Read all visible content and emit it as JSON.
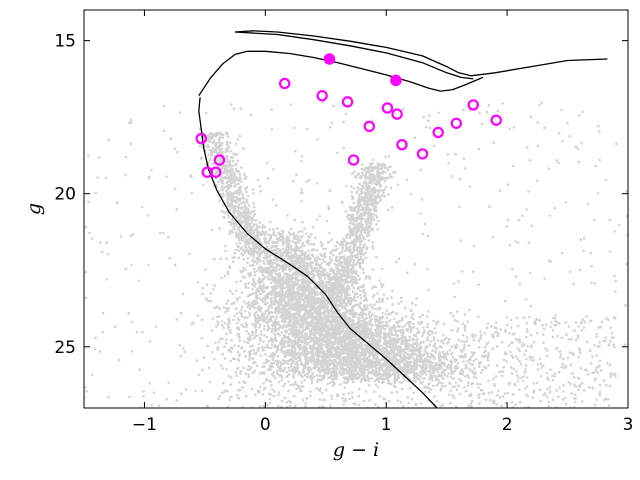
{
  "chart_data": {
    "type": "scatter",
    "title": "",
    "xlabel": "g − i",
    "ylabel": "g",
    "xlim": [
      -1.5,
      3.0
    ],
    "ylim": [
      27.0,
      14.0
    ],
    "y_inverted": true,
    "xticks": [
      -1,
      0,
      1,
      2,
      3
    ],
    "xtick_labels": [
      "−1",
      "0",
      "1",
      "2",
      "3"
    ],
    "yticks": [
      15,
      20,
      25
    ],
    "ytick_labels": [
      "15",
      "20",
      "25"
    ],
    "grid": false,
    "legend": "none",
    "colors": {
      "background_stars": "#d3d3d3",
      "highlight": "#ff00ff",
      "isochrone": "#000000"
    },
    "series": [
      {
        "kind": "scatter-density",
        "style": "small light-grey dots",
        "regions": [
          {
            "shape": "main-sequence",
            "x_range": [
              -0.1,
              1.5
            ],
            "y_range": [
              21.0,
              26.0
            ],
            "density": "high"
          },
          {
            "shape": "red-giant-branch",
            "x_range": [
              0.6,
              1.1
            ],
            "y_range": [
              19.0,
              23.5
            ],
            "density": "medium"
          },
          {
            "shape": "blue-edge",
            "x_range": [
              -0.5,
              0.1
            ],
            "y_range": [
              18.0,
              22.0
            ],
            "density": "medium"
          },
          {
            "shape": "field-scatter",
            "x_range": [
              -1.5,
              3.0
            ],
            "y_range": [
              15.0,
              27.0
            ],
            "density": "low"
          }
        ]
      },
      {
        "kind": "open-circles",
        "points": [
          [
            0.16,
            16.4
          ],
          [
            0.47,
            16.8
          ],
          [
            0.68,
            17.0
          ],
          [
            1.01,
            17.2
          ],
          [
            1.09,
            17.4
          ],
          [
            0.86,
            17.8
          ],
          [
            1.72,
            17.1
          ],
          [
            1.91,
            17.6
          ],
          [
            1.58,
            17.7
          ],
          [
            1.43,
            18.0
          ],
          [
            1.13,
            18.4
          ],
          [
            1.3,
            18.7
          ],
          [
            -0.53,
            18.2
          ],
          [
            -0.38,
            18.9
          ],
          [
            0.73,
            18.9
          ],
          [
            -0.48,
            19.3
          ],
          [
            -0.41,
            19.3
          ]
        ]
      },
      {
        "kind": "filled-circles",
        "points": [
          [
            0.53,
            15.6
          ],
          [
            1.08,
            16.3
          ]
        ]
      },
      {
        "kind": "line",
        "name": "main isochrone",
        "points": [
          [
            -0.54,
            16.85
          ],
          [
            -0.55,
            17.3
          ],
          [
            -0.53,
            17.9
          ],
          [
            -0.51,
            18.5
          ],
          [
            -0.47,
            19.2
          ],
          [
            -0.4,
            19.9
          ],
          [
            -0.3,
            20.6
          ],
          [
            -0.15,
            21.3
          ],
          [
            0.0,
            21.8
          ],
          [
            0.2,
            22.3
          ],
          [
            0.35,
            22.7
          ],
          [
            0.5,
            23.3
          ],
          [
            0.6,
            23.9
          ],
          [
            0.7,
            24.4
          ],
          [
            0.85,
            24.9
          ],
          [
            1.0,
            25.4
          ],
          [
            1.15,
            25.95
          ],
          [
            1.3,
            26.5
          ],
          [
            1.42,
            27.0
          ]
        ]
      },
      {
        "kind": "line",
        "name": "isochrone upper branch",
        "points": [
          [
            -0.55,
            16.8
          ],
          [
            -0.45,
            16.2
          ],
          [
            -0.35,
            15.75
          ],
          [
            -0.25,
            15.45
          ],
          [
            -0.15,
            15.35
          ],
          [
            0.0,
            15.35
          ],
          [
            0.2,
            15.42
          ],
          [
            0.4,
            15.55
          ],
          [
            0.6,
            15.72
          ],
          [
            0.8,
            15.92
          ],
          [
            1.0,
            16.12
          ],
          [
            1.2,
            16.35
          ],
          [
            1.35,
            16.55
          ],
          [
            1.45,
            16.65
          ],
          [
            1.55,
            16.6
          ],
          [
            1.65,
            16.45
          ],
          [
            1.8,
            16.2
          ]
        ]
      },
      {
        "kind": "line",
        "name": "isochrone horizontal branch",
        "points": [
          [
            -0.25,
            14.72
          ],
          [
            -0.1,
            14.68
          ],
          [
            0.1,
            14.72
          ],
          [
            0.4,
            14.85
          ],
          [
            0.7,
            15.02
          ],
          [
            1.0,
            15.22
          ],
          [
            1.3,
            15.5
          ],
          [
            1.5,
            15.85
          ],
          [
            1.6,
            16.05
          ],
          [
            1.7,
            16.15
          ],
          [
            1.9,
            16.05
          ],
          [
            2.2,
            15.85
          ],
          [
            2.5,
            15.65
          ],
          [
            2.83,
            15.6
          ]
        ]
      },
      {
        "kind": "line",
        "name": "isochrone horizontal branch inner",
        "points": [
          [
            -0.25,
            14.72
          ],
          [
            0.1,
            14.8
          ],
          [
            0.4,
            14.97
          ],
          [
            0.7,
            15.17
          ],
          [
            1.0,
            15.4
          ],
          [
            1.3,
            15.72
          ],
          [
            1.5,
            16.05
          ],
          [
            1.62,
            16.2
          ],
          [
            1.72,
            16.25
          ]
        ]
      }
    ]
  }
}
